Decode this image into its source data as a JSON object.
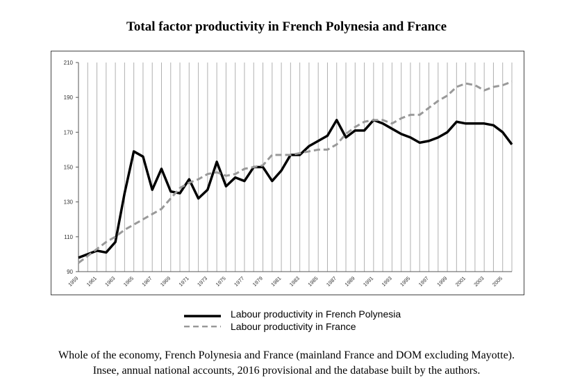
{
  "title": "Total factor productivity in French Polynesia and France",
  "caption": {
    "line1": "Whole of the economy, French Polynesia and France (mainland France and DOM excluding Mayotte).",
    "line2": "Insee, annual national accounts, 2016 provisional and the database built by the authors."
  },
  "chart_data": {
    "type": "line",
    "title": "Total factor productivity in French Polynesia and France",
    "xlabel": "",
    "ylabel": "",
    "ylim": [
      90,
      210
    ],
    "yticks": [
      90,
      110,
      130,
      150,
      170,
      190,
      210
    ],
    "xlim": [
      1959,
      2006
    ],
    "xticks": [
      "1959",
      "1961",
      "1963",
      "1965",
      "1967",
      "1969",
      "1971",
      "1973",
      "1975",
      "1977",
      "1979",
      "1981",
      "1983",
      "1985",
      "1987",
      "1989",
      "1991",
      "1993",
      "1995",
      "1997",
      "1999",
      "2001",
      "2003",
      "2005"
    ],
    "grid": "vertical",
    "x": [
      1959,
      1960,
      1961,
      1962,
      1963,
      1964,
      1965,
      1966,
      1967,
      1968,
      1969,
      1970,
      1971,
      1972,
      1973,
      1974,
      1975,
      1976,
      1977,
      1978,
      1979,
      1980,
      1981,
      1982,
      1983,
      1984,
      1985,
      1986,
      1987,
      1988,
      1989,
      1990,
      1991,
      1992,
      1993,
      1994,
      1995,
      1996,
      1997,
      1998,
      1999,
      2000,
      2001,
      2002,
      2003,
      2004,
      2005,
      2006
    ],
    "series": [
      {
        "name": "Labour productivity in French Polynesia",
        "color": "#000000",
        "style": "solid",
        "values": [
          98,
          100,
          102,
          101,
          107,
          135,
          159,
          156,
          137,
          149,
          136,
          135,
          143,
          132,
          137,
          153,
          139,
          144,
          142,
          150,
          150,
          142,
          148,
          157,
          157,
          162,
          165,
          168,
          177,
          167,
          171,
          171,
          177,
          175,
          172,
          169,
          167,
          164,
          165,
          167,
          170,
          176,
          175,
          175,
          175,
          174,
          170,
          163
        ]
      },
      {
        "name": "Labour productivity in France",
        "color": "#999999",
        "style": "dashed",
        "values": [
          95,
          99,
          103,
          107,
          110,
          114,
          117,
          120,
          123,
          126,
          132,
          138,
          141,
          143,
          146,
          147,
          145,
          146,
          149,
          150,
          151,
          157,
          157,
          157,
          158,
          159,
          160,
          160,
          163,
          169,
          173,
          176,
          177,
          177,
          175,
          178,
          180,
          180,
          184,
          188,
          191,
          196,
          198,
          197,
          194,
          196,
          197,
          199
        ]
      }
    ],
    "legend": "bottom-center"
  }
}
